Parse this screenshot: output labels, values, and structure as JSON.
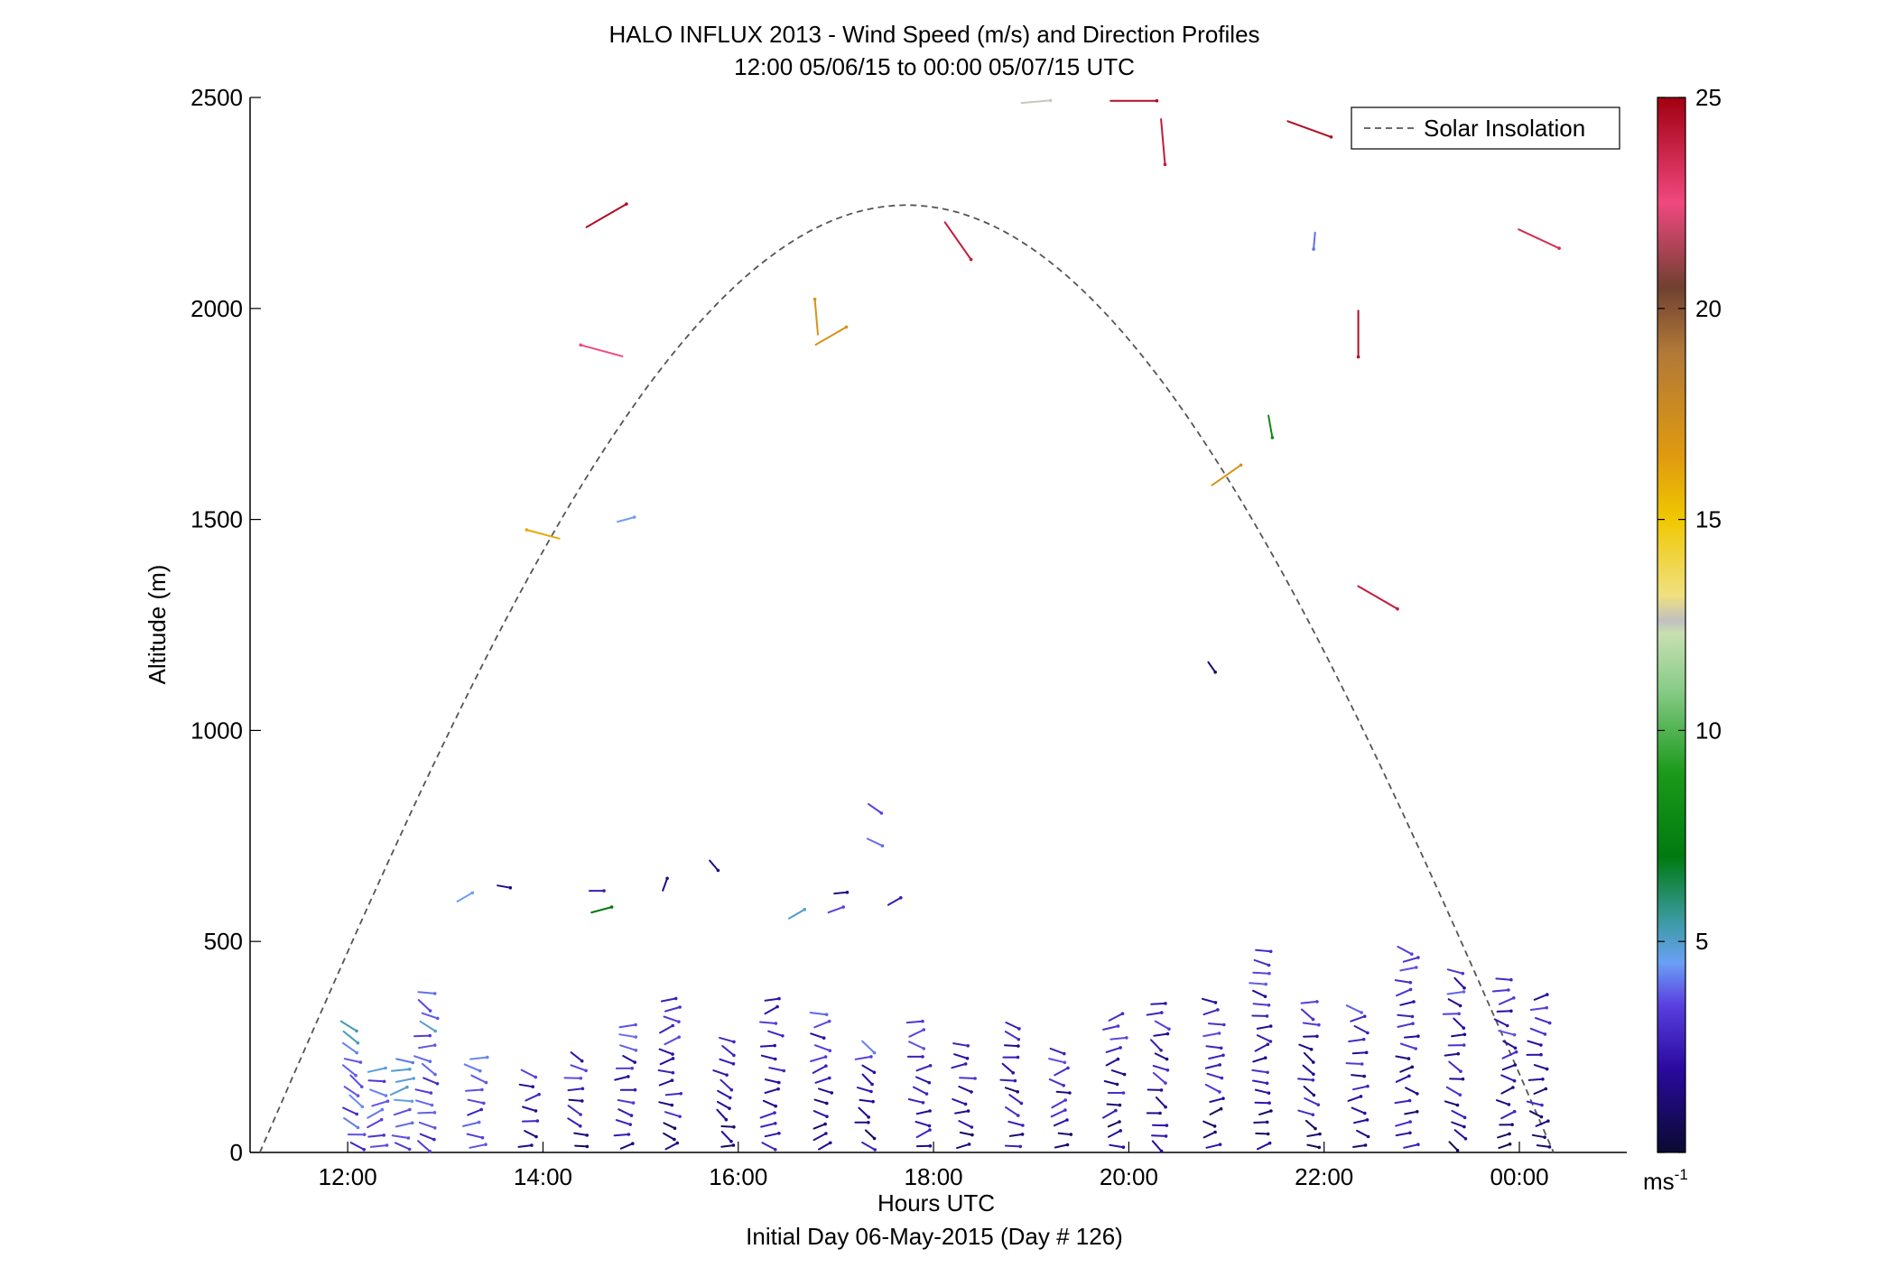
{
  "chart_data": {
    "type": "wind-profile",
    "title": "HALO INFLUX 2013 - Wind Speed (m/s) and Direction Profiles",
    "subtitle": "12:00 05/06/15 to 00:00 05/07/15  UTC",
    "xlabel": "Hours UTC",
    "xlabel2": "Initial Day 06-May-2015 (Day # 126)",
    "ylabel": "Altitude (m)",
    "xlim": [
      11.0,
      25.1
    ],
    "ylim": [
      0,
      2500
    ],
    "x_ticks": [
      {
        "value": 12,
        "label": "12:00"
      },
      {
        "value": 14,
        "label": "14:00"
      },
      {
        "value": 16,
        "label": "16:00"
      },
      {
        "value": 18,
        "label": "18:00"
      },
      {
        "value": 20,
        "label": "20:00"
      },
      {
        "value": 22,
        "label": "22:00"
      },
      {
        "value": 24,
        "label": "00:00"
      }
    ],
    "y_ticks": [
      {
        "value": 0,
        "label": "0"
      },
      {
        "value": 500,
        "label": "500"
      },
      {
        "value": 1000,
        "label": "1000"
      },
      {
        "value": 1500,
        "label": "1500"
      },
      {
        "value": 2000,
        "label": "2000"
      },
      {
        "value": 2500,
        "label": "2500"
      }
    ],
    "legend": {
      "label": "Solar Insolation",
      "location": "top-right",
      "color": "#555555",
      "style": "dashed"
    },
    "colorbar": {
      "min": 0,
      "max": 25,
      "ticks": [
        {
          "value": 5,
          "label": "5"
        },
        {
          "value": 10,
          "label": "10"
        },
        {
          "value": 15,
          "label": "15"
        },
        {
          "value": 20,
          "label": "20"
        },
        {
          "value": 25,
          "label": "25"
        }
      ],
      "unit": "ms",
      "unit_exp": "-1",
      "stops": [
        {
          "v": 0,
          "color": "#0a0a30"
        },
        {
          "v": 2,
          "color": "#2a0aa0"
        },
        {
          "v": 3.5,
          "color": "#5a40e0"
        },
        {
          "v": 4.5,
          "color": "#6aa0f5"
        },
        {
          "v": 5.5,
          "color": "#3a9aa0"
        },
        {
          "v": 7,
          "color": "#007a10"
        },
        {
          "v": 9,
          "color": "#1a9a1a"
        },
        {
          "v": 11,
          "color": "#8acc8a"
        },
        {
          "v": 12.3,
          "color": "#c8e0b0"
        },
        {
          "v": 12.6,
          "color": "#c0c0c0"
        },
        {
          "v": 13.2,
          "color": "#f0e080"
        },
        {
          "v": 15,
          "color": "#f0c800"
        },
        {
          "v": 16.5,
          "color": "#e09a10"
        },
        {
          "v": 19,
          "color": "#b07838"
        },
        {
          "v": 20.5,
          "color": "#704030"
        },
        {
          "v": 22.5,
          "color": "#f04880"
        },
        {
          "v": 25,
          "color": "#a00010"
        }
      ]
    },
    "solar_insolation": {
      "sunrise_hour": 11.1,
      "sunset_hour": 24.35,
      "peak_altitude": 2245
    },
    "series": [
      {
        "name": "upper-level wind barbs",
        "barbs": [
          {
            "t": 14.0,
            "z": 1465,
            "dir": 285,
            "speed": 16
          },
          {
            "t": 14.85,
            "z": 1500,
            "dir": 75,
            "speed": 4.5
          },
          {
            "t": 14.6,
            "z": 1900,
            "dir": 285,
            "speed": 22.5
          },
          {
            "t": 14.65,
            "z": 2220,
            "dir": 60,
            "speed": 24.5
          },
          {
            "t": 16.8,
            "z": 1980,
            "dir": 355,
            "speed": 17
          },
          {
            "t": 16.95,
            "z": 1935,
            "dir": 60,
            "speed": 17
          },
          {
            "t": 18.25,
            "z": 2160,
            "dir": 145,
            "speed": 24
          },
          {
            "t": 19.05,
            "z": 2490,
            "dir": 85,
            "speed": 12.5
          },
          {
            "t": 20.05,
            "z": 2492,
            "dir": 90,
            "speed": 24.5
          },
          {
            "t": 20.35,
            "z": 2395,
            "dir": 175,
            "speed": 24
          },
          {
            "t": 21.0,
            "z": 1605,
            "dir": 55,
            "speed": 17
          },
          {
            "t": 20.85,
            "z": 1150,
            "dir": 145,
            "speed": 1
          },
          {
            "t": 21.45,
            "z": 1720,
            "dir": 170,
            "speed": 8
          },
          {
            "t": 21.85,
            "z": 2425,
            "dir": 110,
            "speed": 24.5
          },
          {
            "t": 21.9,
            "z": 2160,
            "dir": 185,
            "speed": 4
          },
          {
            "t": 22.35,
            "z": 1940,
            "dir": 180,
            "speed": 24.5
          },
          {
            "t": 22.55,
            "z": 1315,
            "dir": 120,
            "speed": 24
          },
          {
            "t": 24.2,
            "z": 2165,
            "dir": 115,
            "speed": 23.5
          }
        ]
      },
      {
        "name": "mid-level wind barbs",
        "barbs": [
          {
            "t": 13.2,
            "z": 605,
            "dir": 60,
            "speed": 4.5
          },
          {
            "t": 13.6,
            "z": 630,
            "dir": 100,
            "speed": 1.5
          },
          {
            "t": 14.55,
            "z": 620,
            "dir": 90,
            "speed": 2.5
          },
          {
            "t": 14.6,
            "z": 575,
            "dir": 75,
            "speed": 7
          },
          {
            "t": 15.25,
            "z": 635,
            "dir": 20,
            "speed": 1.5
          },
          {
            "t": 15.75,
            "z": 680,
            "dir": 140,
            "speed": 1.5
          },
          {
            "t": 16.6,
            "z": 565,
            "dir": 60,
            "speed": 5
          },
          {
            "t": 17.05,
            "z": 615,
            "dir": 85,
            "speed": 1.5
          },
          {
            "t": 17.0,
            "z": 575,
            "dir": 70,
            "speed": 3.5
          },
          {
            "t": 17.6,
            "z": 595,
            "dir": 60,
            "speed": 2.5
          },
          {
            "t": 17.4,
            "z": 815,
            "dir": 125,
            "speed": 3.5
          },
          {
            "t": 17.4,
            "z": 735,
            "dir": 115,
            "speed": 4
          }
        ]
      }
    ]
  }
}
